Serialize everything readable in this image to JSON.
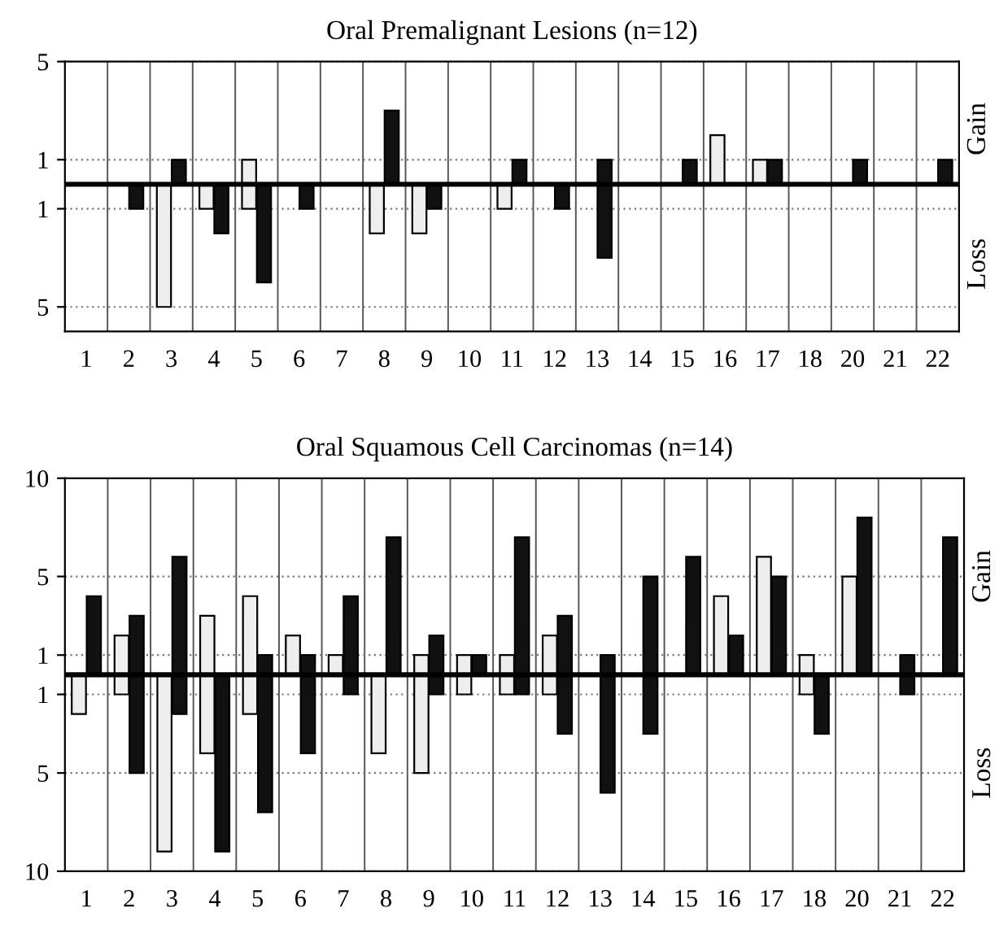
{
  "chart_data": [
    {
      "type": "bar",
      "title": "Oral Premalignant Lesions (n=12)",
      "categories": [
        "1",
        "2",
        "3",
        "4",
        "5",
        "6",
        "7",
        "8",
        "9",
        "10",
        "11",
        "12",
        "13",
        "14",
        "15",
        "16",
        "17",
        "18",
        "20",
        "21",
        "22"
      ],
      "series": [
        {
          "color": "#eeeeee",
          "base": [
            null,
            null,
            -5,
            -1,
            -1,
            null,
            null,
            -2,
            -2,
            null,
            -1,
            null,
            null,
            null,
            null,
            0,
            0,
            null,
            null,
            null,
            null
          ],
          "values": [
            null,
            null,
            5,
            1,
            2,
            null,
            null,
            2,
            2,
            null,
            1,
            null,
            null,
            null,
            null,
            2,
            1,
            null,
            null,
            null,
            null
          ]
        },
        {
          "color": "#111111",
          "base": [
            null,
            -1,
            0,
            -2,
            -4,
            -1,
            null,
            0,
            -1,
            null,
            0,
            -1,
            -3,
            null,
            0,
            null,
            0,
            null,
            0,
            null,
            0
          ],
          "values": [
            null,
            1,
            1,
            2,
            4,
            1,
            null,
            3,
            1,
            null,
            1,
            1,
            4,
            null,
            1,
            null,
            1,
            null,
            1,
            null,
            1
          ]
        }
      ],
      "ylim": [
        -6,
        5
      ],
      "yticks": [
        5,
        1,
        {
          "value": -1,
          "label": "1"
        },
        {
          "value": -5,
          "label": "5"
        }
      ],
      "ref_lines": [
        {
          "axis": "y",
          "value": 0,
          "label": null,
          "color": "#000000"
        }
      ],
      "annotations": [
        "Gain",
        "Loss"
      ],
      "grid": true
    },
    {
      "type": "bar",
      "title": "Oral Squamous Cell Carcinomas (n=14)",
      "categories": [
        "1",
        "2",
        "3",
        "4",
        "5",
        "6",
        "7",
        "8",
        "9",
        "10",
        "11",
        "12",
        "13",
        "14",
        "15",
        "16",
        "17",
        "18",
        "20",
        "21",
        "22"
      ],
      "series": [
        {
          "color": "#eeeeee",
          "base": [
            -2,
            -1,
            -9,
            -4,
            -2,
            0,
            0,
            -4,
            -5,
            -1,
            -1,
            -1,
            null,
            null,
            null,
            0,
            0,
            -1,
            0,
            null,
            null
          ],
          "values": [
            2,
            3,
            9,
            7,
            6,
            2,
            1,
            4,
            6,
            2,
            2,
            3,
            null,
            null,
            null,
            4,
            6,
            2,
            5,
            null,
            null
          ]
        },
        {
          "color": "#111111",
          "base": [
            0,
            -5,
            -2,
            -9,
            -7,
            -4,
            -1,
            0,
            -1,
            0,
            -1,
            -3,
            -6,
            -3,
            0,
            0,
            0,
            -3,
            0,
            -1,
            0
          ],
          "values": [
            4,
            8,
            8,
            9,
            8,
            5,
            5,
            7,
            3,
            1,
            8,
            6,
            7,
            8,
            6,
            2,
            5,
            3,
            8,
            2,
            7
          ]
        }
      ],
      "ylim": [
        -10,
        10
      ],
      "yticks": [
        10,
        5,
        1,
        {
          "value": -1,
          "label": "1"
        },
        {
          "value": -5,
          "label": "5"
        },
        {
          "value": -10,
          "label": "10"
        }
      ],
      "ref_lines": [
        {
          "axis": "y",
          "value": 0,
          "label": null,
          "color": "#000000"
        }
      ],
      "annotations": [
        "Gain",
        "Loss"
      ],
      "grid": true
    }
  ]
}
